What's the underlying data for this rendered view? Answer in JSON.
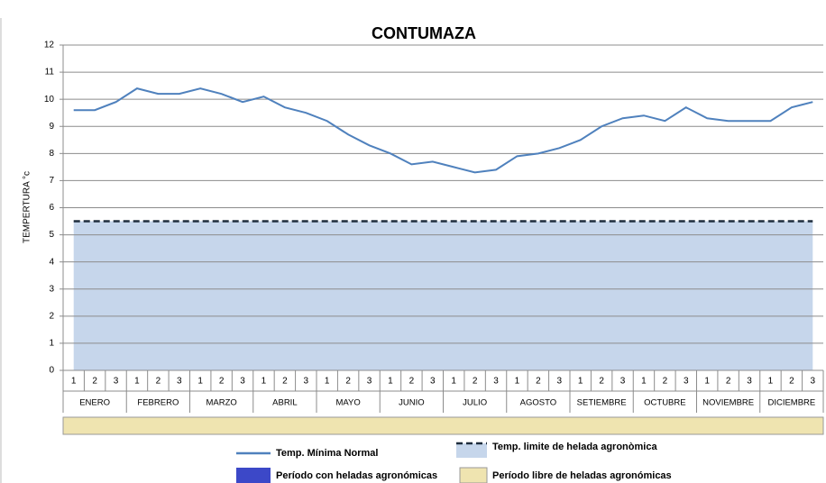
{
  "chart_data": {
    "type": "line",
    "title": "CONTUMAZA",
    "y_label": "TEMPERTURA °c",
    "categories": [
      "1",
      "2",
      "3",
      "1",
      "2",
      "3",
      "1",
      "2",
      "3",
      "1",
      "2",
      "3",
      "1",
      "2",
      "3",
      "1",
      "2",
      "3",
      "1",
      "2",
      "3",
      "1",
      "2",
      "3",
      "1",
      "2",
      "3",
      "1",
      "2",
      "3",
      "1",
      "2",
      "3",
      "1",
      "2",
      "3"
    ],
    "months": [
      "ENERO",
      "FEBRERO",
      "MARZO",
      "ABRIL",
      "MAYO",
      "JUNIO",
      "JULIO",
      "AGOSTO",
      "SETIEMBRE",
      "OCTUBRE",
      "NOVIEMBRE",
      "DICIEMBRE"
    ],
    "ylim": [
      0,
      12
    ],
    "yticks": [
      0,
      1,
      2,
      3,
      4,
      5,
      6,
      7,
      8,
      9,
      10,
      11,
      12
    ],
    "grid": true,
    "series": [
      {
        "name": "Temp. Mínima Normal",
        "color": "#4f81bd",
        "values": [
          9.6,
          9.6,
          9.9,
          10.4,
          10.2,
          10.2,
          10.4,
          10.2,
          9.9,
          10.1,
          9.7,
          9.5,
          9.2,
          8.7,
          8.3,
          8.0,
          7.6,
          7.7,
          7.5,
          7.3,
          7.4,
          7.9,
          8.0,
          8.2,
          8.5,
          9.0,
          9.3,
          9.4,
          9.2,
          9.7,
          9.3,
          9.2,
          9.2,
          9.2,
          9.7,
          9.9
        ]
      },
      {
        "name": "Temp. limite de helada agronòmica",
        "color": "#1f2d3d",
        "fill": "#c6d6eb",
        "values": [
          5.5,
          5.5,
          5.5,
          5.5,
          5.5,
          5.5,
          5.5,
          5.5,
          5.5,
          5.5,
          5.5,
          5.5,
          5.5,
          5.5,
          5.5,
          5.5,
          5.5,
          5.5,
          5.5,
          5.5,
          5.5,
          5.5,
          5.5,
          5.5,
          5.5,
          5.5,
          5.5,
          5.5,
          5.5,
          5.5,
          5.5,
          5.5,
          5.5,
          5.5,
          5.5,
          5.5
        ]
      }
    ],
    "legend_items": [
      {
        "name": "Período con heladas agronómicas",
        "color": "#3c48c8"
      },
      {
        "name": "Período libre de heladas agronómicas",
        "color": "#efe4b0"
      }
    ]
  }
}
